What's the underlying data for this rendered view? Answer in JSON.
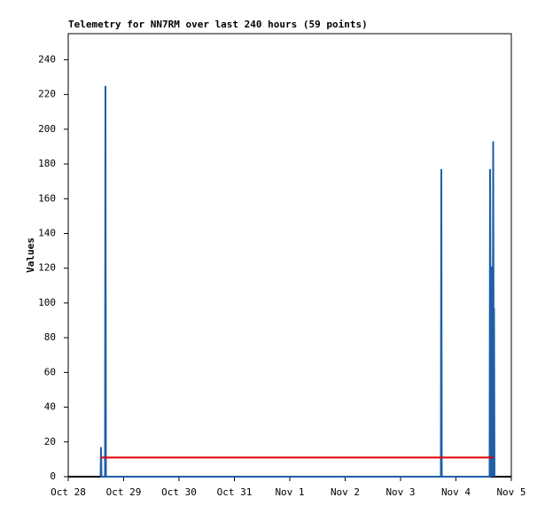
{
  "chart_data": {
    "type": "line",
    "title": "Telemetry for NN7RM over last 240 hours (59 points)",
    "y_label": "Values",
    "xlim": [
      0,
      8
    ],
    "xticks": [
      {
        "value": 0,
        "label": "Oct 28"
      },
      {
        "value": 1,
        "label": "Oct 29"
      },
      {
        "value": 2,
        "label": "Oct 30"
      },
      {
        "value": 3,
        "label": "Oct 31"
      },
      {
        "value": 4,
        "label": "Nov 1"
      },
      {
        "value": 5,
        "label": "Nov 2"
      },
      {
        "value": 6,
        "label": "Nov 3"
      },
      {
        "value": 7,
        "label": "Nov 4"
      },
      {
        "value": 8,
        "label": "Nov 5"
      }
    ],
    "ylim": [
      0,
      255
    ],
    "yticks": [
      0,
      20,
      40,
      60,
      80,
      100,
      120,
      140,
      160,
      180,
      200,
      220,
      240
    ],
    "series": [
      {
        "color": "#1f5fa8",
        "x": [
          0.584,
          0.592,
          0.6,
          0.664,
          0.672,
          0.68,
          6.728,
          6.736,
          6.744,
          7.608,
          7.616,
          7.632,
          7.64,
          7.648,
          7.656,
          7.664,
          7.672,
          7.68,
          7.688,
          7.696
        ],
        "values": [
          0,
          17,
          0,
          0,
          225,
          0,
          0,
          177,
          0,
          0,
          177,
          0,
          121,
          100,
          110,
          0,
          193,
          80,
          97,
          0
        ]
      },
      {
        "color": "#e00000",
        "x": [
          0.592,
          7.68
        ],
        "values": [
          11,
          11
        ]
      }
    ]
  }
}
